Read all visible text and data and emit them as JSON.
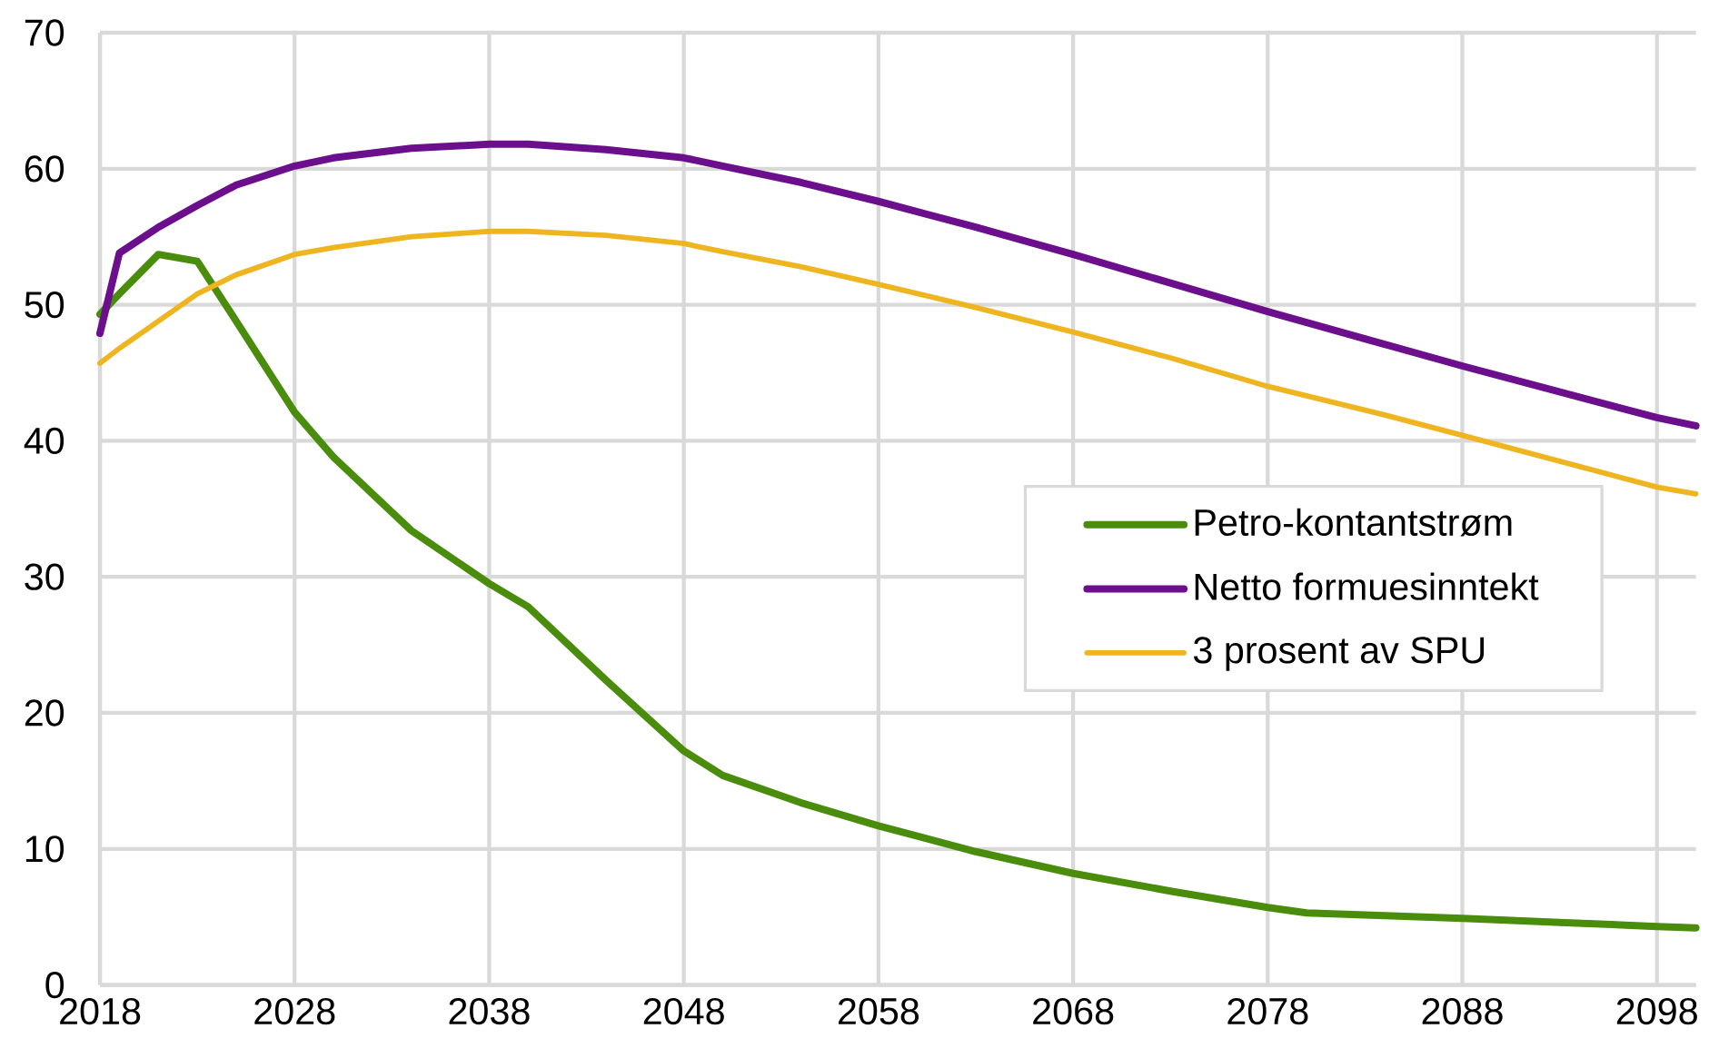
{
  "chart_data": {
    "type": "line",
    "xlim": [
      2018,
      2100
    ],
    "ylim": [
      0,
      70
    ],
    "xticks": [
      2018,
      2028,
      2038,
      2048,
      2058,
      2068,
      2078,
      2088,
      2098
    ],
    "yticks": [
      0,
      10,
      20,
      30,
      40,
      50,
      60,
      70
    ],
    "grid": true,
    "legend": "right",
    "line_style": "solid",
    "x": [
      2018,
      2019,
      2021,
      2023,
      2025,
      2028,
      2030,
      2034,
      2038,
      2040,
      2044,
      2048,
      2050,
      2054,
      2058,
      2063,
      2068,
      2073,
      2078,
      2080,
      2084,
      2088,
      2093,
      2098,
      2100
    ],
    "series": [
      {
        "name": "Petro-kontantstrøm",
        "color": "#4a8c0c",
        "values": [
          49.3,
          50.8,
          53.7,
          53.2,
          48.8,
          42.1,
          38.8,
          33.4,
          29.5,
          27.8,
          22.4,
          17.2,
          15.4,
          13.4,
          11.7,
          9.8,
          8.2,
          6.9,
          5.7,
          5.3,
          5.1,
          4.9,
          4.6,
          4.3,
          4.2
        ]
      },
      {
        "name": "Netto formuesinntekt",
        "color": "#6b0f8c",
        "values": [
          47.9,
          53.8,
          55.7,
          57.3,
          58.8,
          60.2,
          60.8,
          61.5,
          61.8,
          61.8,
          61.4,
          60.8,
          60.2,
          59.0,
          57.6,
          55.7,
          53.7,
          51.6,
          49.5,
          48.7,
          47.1,
          45.5,
          43.6,
          41.7,
          41.1
        ]
      },
      {
        "name": "3 prosent av SPU",
        "color": "#efb521",
        "values": [
          45.7,
          46.8,
          48.8,
          50.8,
          52.2,
          53.7,
          54.2,
          55.0,
          55.4,
          55.4,
          55.1,
          54.5,
          53.9,
          52.8,
          51.5,
          49.8,
          48.0,
          46.1,
          44.0,
          43.3,
          41.9,
          40.4,
          38.5,
          36.6,
          36.1
        ]
      }
    ]
  }
}
